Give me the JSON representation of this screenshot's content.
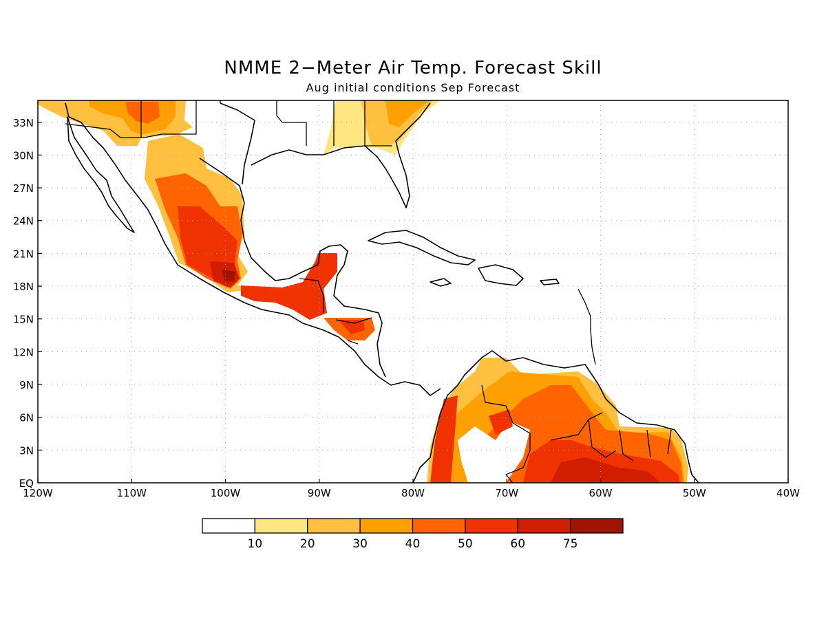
{
  "title": "NMME 2−Meter Air Temp. Forecast Skill",
  "subtitle": "Aug initial conditions  Sep Forecast",
  "map": {
    "lon_range": [
      -120,
      -40
    ],
    "lat_range": [
      0,
      35
    ],
    "lon_ticks": [
      {
        "value": -120,
        "label": "120W"
      },
      {
        "value": -110,
        "label": "110W"
      },
      {
        "value": -100,
        "label": "100W"
      },
      {
        "value": -90,
        "label": "90W"
      },
      {
        "value": -80,
        "label": "80W"
      },
      {
        "value": -70,
        "label": "70W"
      },
      {
        "value": -60,
        "label": "60W"
      },
      {
        "value": -50,
        "label": "50W"
      },
      {
        "value": -40,
        "label": "40W"
      }
    ],
    "lat_ticks": [
      {
        "value": 0,
        "label": "EQ"
      },
      {
        "value": 3,
        "label": "3N"
      },
      {
        "value": 6,
        "label": "6N"
      },
      {
        "value": 9,
        "label": "9N"
      },
      {
        "value": 12,
        "label": "12N"
      },
      {
        "value": 15,
        "label": "15N"
      },
      {
        "value": 18,
        "label": "18N"
      },
      {
        "value": 21,
        "label": "21N"
      },
      {
        "value": 24,
        "label": "24N"
      },
      {
        "value": 27,
        "label": "27N"
      },
      {
        "value": 30,
        "label": "30N"
      },
      {
        "value": 33,
        "label": "33N"
      }
    ],
    "grid": true,
    "colors": {
      "c10": "#ffe680",
      "c20": "#ffc040",
      "c30": "#ffa000",
      "c40": "#ff6400",
      "c50": "#f03200",
      "c60": "#d21e00",
      "c75": "#a01400"
    }
  },
  "colorbar": {
    "colors": [
      "#ffffff",
      "#ffe680",
      "#ffc040",
      "#ffa000",
      "#ff6400",
      "#f03200",
      "#d21e00",
      "#a01400"
    ],
    "labels": [
      "10",
      "20",
      "30",
      "40",
      "50",
      "60",
      "75"
    ]
  }
}
